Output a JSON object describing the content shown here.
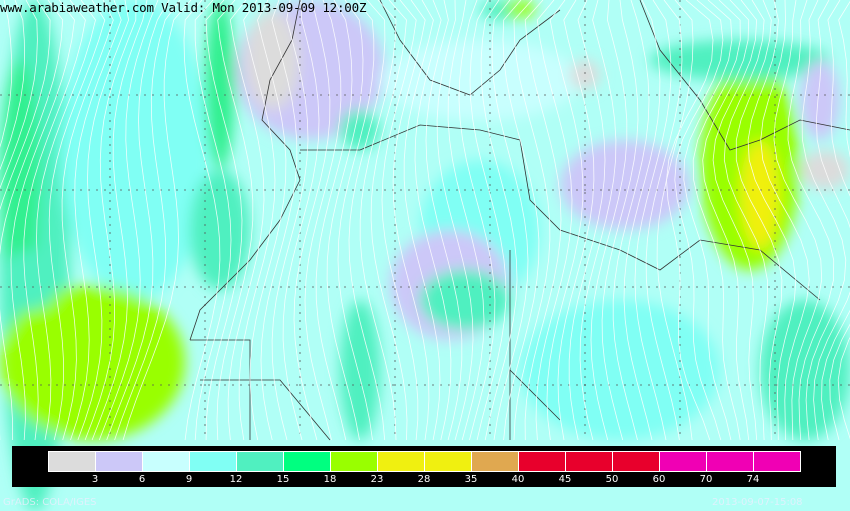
{
  "title": "www.arabiaweather.com Valid: Mon 2013-09-09 12:00Z",
  "legend": {
    "colors": [
      "#dcdcdc",
      "#ccc8f8",
      "#c8fffe",
      "#80fff4",
      "#50f0c0",
      "#00ff80",
      "#99ff00",
      "#f0f010",
      "#f0f010",
      "#e0a850",
      "#e8002c",
      "#e8002c",
      "#e8002c",
      "#f000b4",
      "#f000b4",
      "#f000b4"
    ],
    "labels": [
      "3",
      "6",
      "9",
      "12",
      "15",
      "18",
      "23",
      "28",
      "35",
      "40",
      "45",
      "50",
      "60",
      "70",
      "74"
    ]
  },
  "footer": {
    "left": "GrADS: COLA/IGES",
    "right": "2013-09-07-15:08"
  }
}
